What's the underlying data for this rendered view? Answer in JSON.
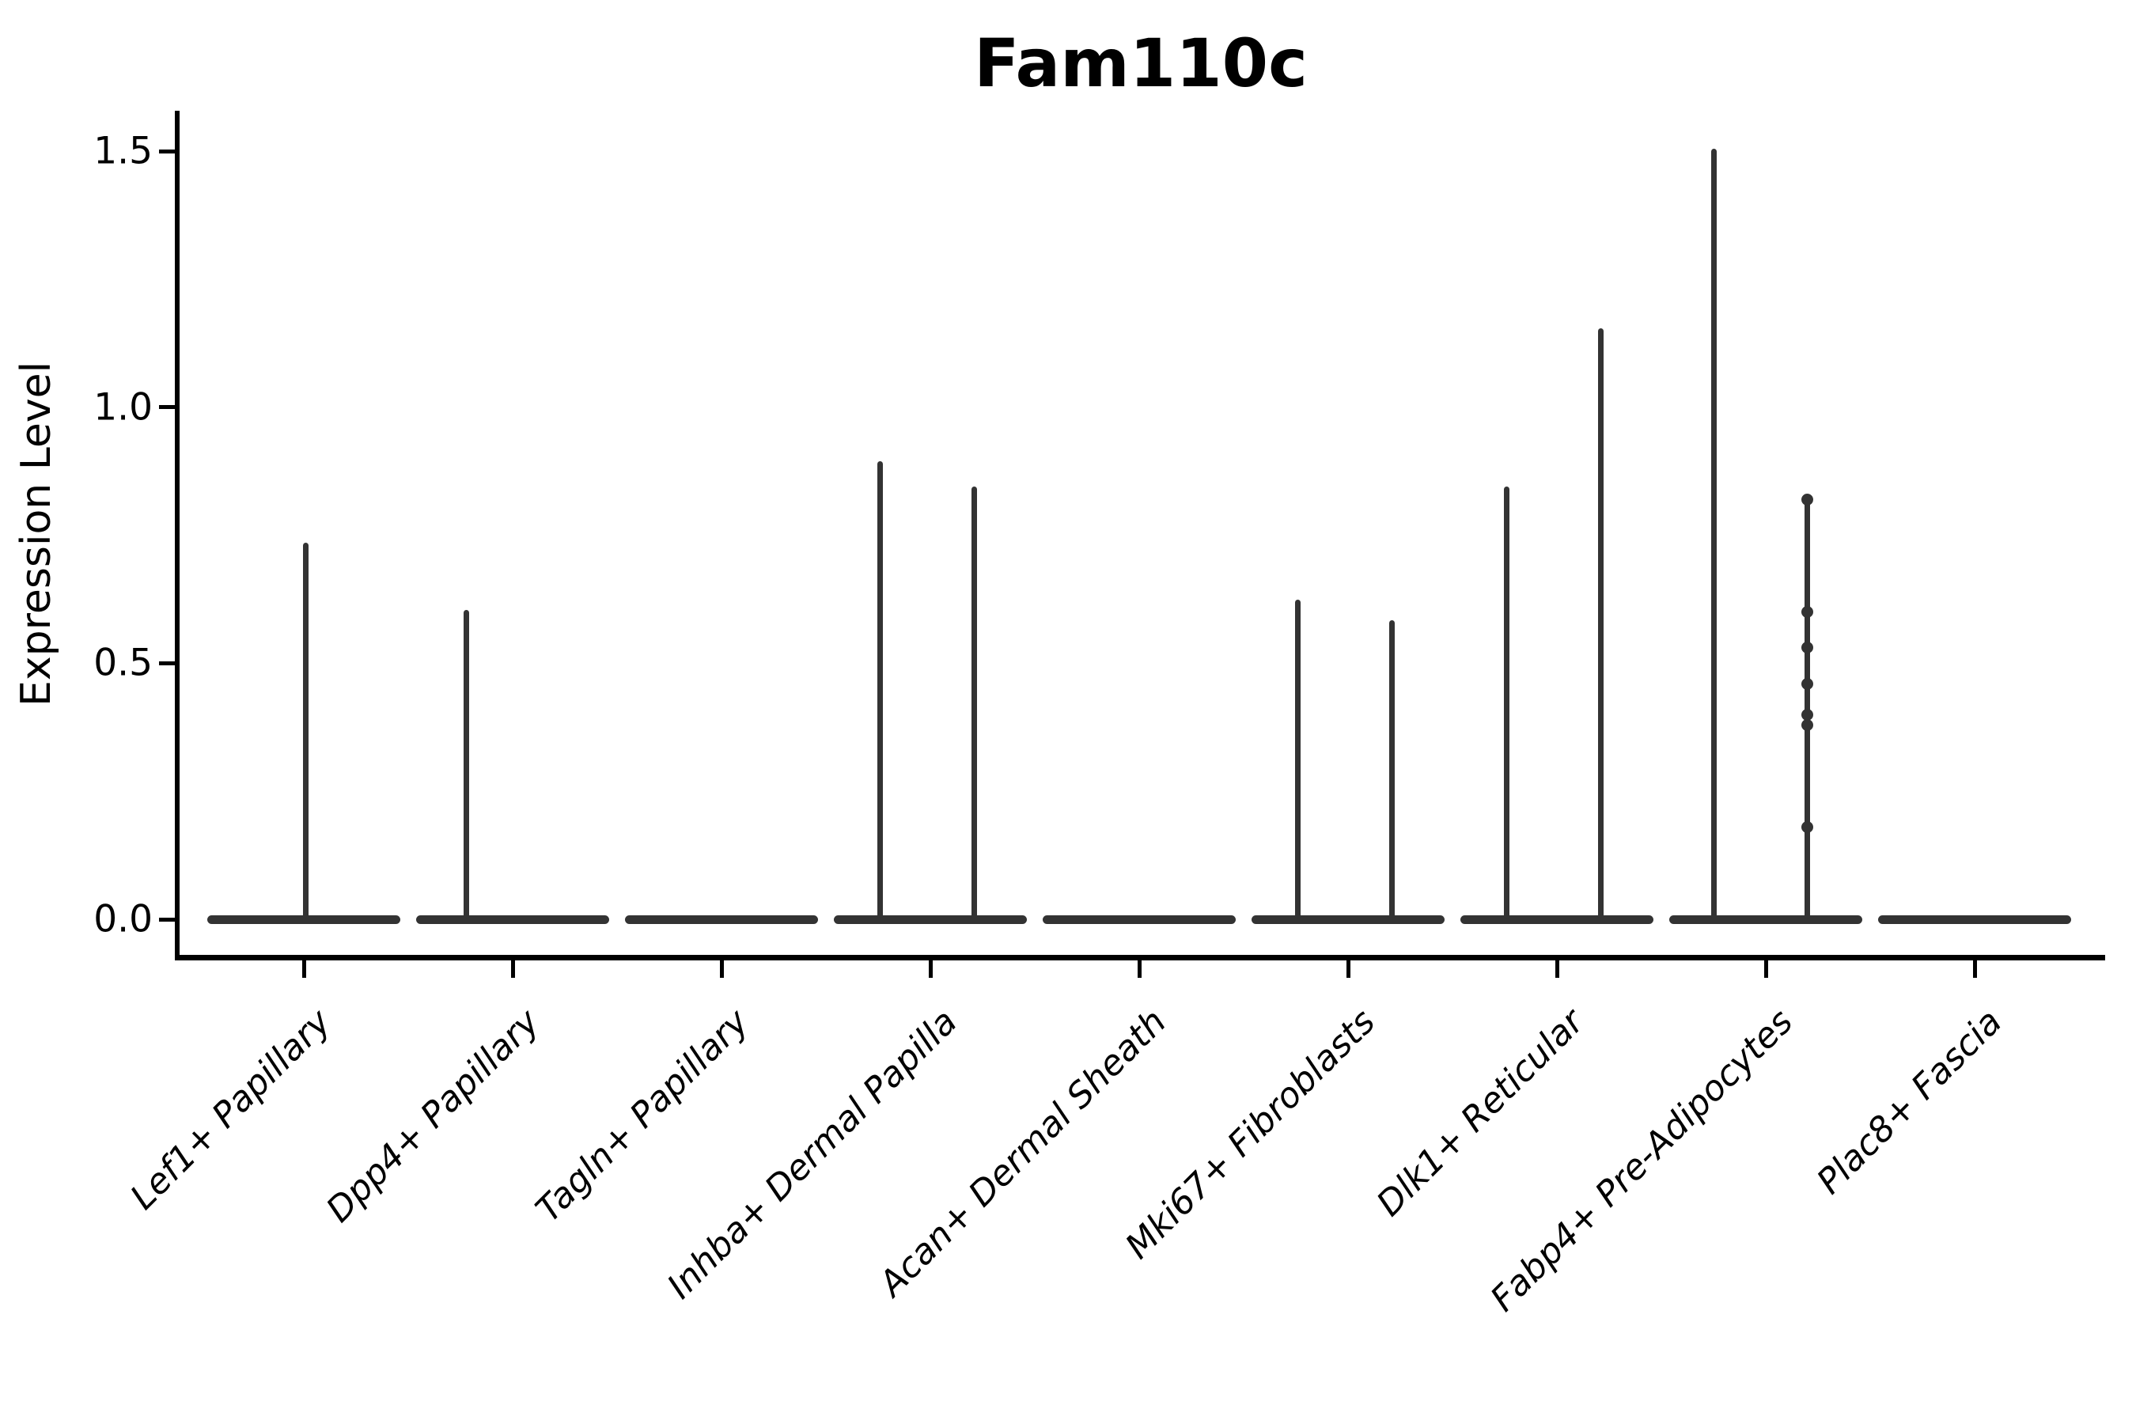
{
  "title": "Fam110c",
  "y_axis": {
    "label": "Expression Level",
    "tick_labels": [
      "0.0",
      "0.5",
      "1.0",
      "1.5"
    ]
  },
  "chart_data": {
    "type": "violin",
    "title": "Fam110c",
    "xlabel": "",
    "ylabel": "Expression Level",
    "ylim": [
      -0.07,
      1.58
    ],
    "yticks": [
      0.0,
      0.5,
      1.0,
      1.5
    ],
    "legend": "none",
    "grid": false,
    "categories": [
      "Lef1+ Papillary",
      "Dpp4+ Papillary",
      "Tagln+ Papillary",
      "Inhba+ Dermal Papilla",
      "Acan+ Dermal Sheath",
      "Mki67+ Fibroblasts",
      "Dlk1+ Reticular",
      "Fabp4+ Pre-Adipocytes",
      "Plac8+ Fascia"
    ],
    "description": "Violin plot of Fam110c expression; every cluster has a flat dense bulk at 0 with thin spikes up to the listed maxima.",
    "violins": [
      {
        "category": "Lef1+ Papillary",
        "bulk_at_zero": true,
        "spikes": [
          {
            "x_offset": 0.01,
            "max": 0.73
          }
        ],
        "points": []
      },
      {
        "category": "Dpp4+ Papillary",
        "bulk_at_zero": true,
        "spikes": [
          {
            "x_offset": -0.22,
            "max": 0.6
          }
        ],
        "points": []
      },
      {
        "category": "Tagln+ Papillary",
        "bulk_at_zero": true,
        "spikes": [],
        "points": []
      },
      {
        "category": "Inhba+ Dermal Papilla",
        "bulk_at_zero": true,
        "spikes": [
          {
            "x_offset": -0.24,
            "max": 0.89
          },
          {
            "x_offset": 0.21,
            "max": 0.84
          }
        ],
        "points": []
      },
      {
        "category": "Acan+ Dermal Sheath",
        "bulk_at_zero": true,
        "spikes": [],
        "points": []
      },
      {
        "category": "Mki67+ Fibroblasts",
        "bulk_at_zero": true,
        "spikes": [
          {
            "x_offset": -0.24,
            "max": 0.62
          },
          {
            "x_offset": 0.21,
            "max": 0.58
          }
        ],
        "points": []
      },
      {
        "category": "Dlk1+ Reticular",
        "bulk_at_zero": true,
        "spikes": [
          {
            "x_offset": -0.24,
            "max": 0.84
          },
          {
            "x_offset": 0.21,
            "max": 1.15
          }
        ],
        "points": []
      },
      {
        "category": "Fabp4+ Pre-Adipocytes",
        "bulk_at_zero": true,
        "spikes": [
          {
            "x_offset": -0.25,
            "max": 1.5
          },
          {
            "x_offset": 0.2,
            "max": 0.82
          }
        ],
        "points": [
          {
            "x_offset": 0.2,
            "value": 0.82
          },
          {
            "x_offset": 0.2,
            "value": 0.6
          },
          {
            "x_offset": 0.2,
            "value": 0.53
          },
          {
            "x_offset": 0.2,
            "value": 0.46
          },
          {
            "x_offset": 0.2,
            "value": 0.4
          },
          {
            "x_offset": 0.2,
            "value": 0.38
          },
          {
            "x_offset": 0.2,
            "value": 0.18
          }
        ]
      },
      {
        "category": "Plac8+ Fascia",
        "bulk_at_zero": true,
        "spikes": [],
        "points": []
      }
    ],
    "colors": {
      "violin": "#333333",
      "axis": "#000000",
      "background": "#ffffff"
    }
  }
}
